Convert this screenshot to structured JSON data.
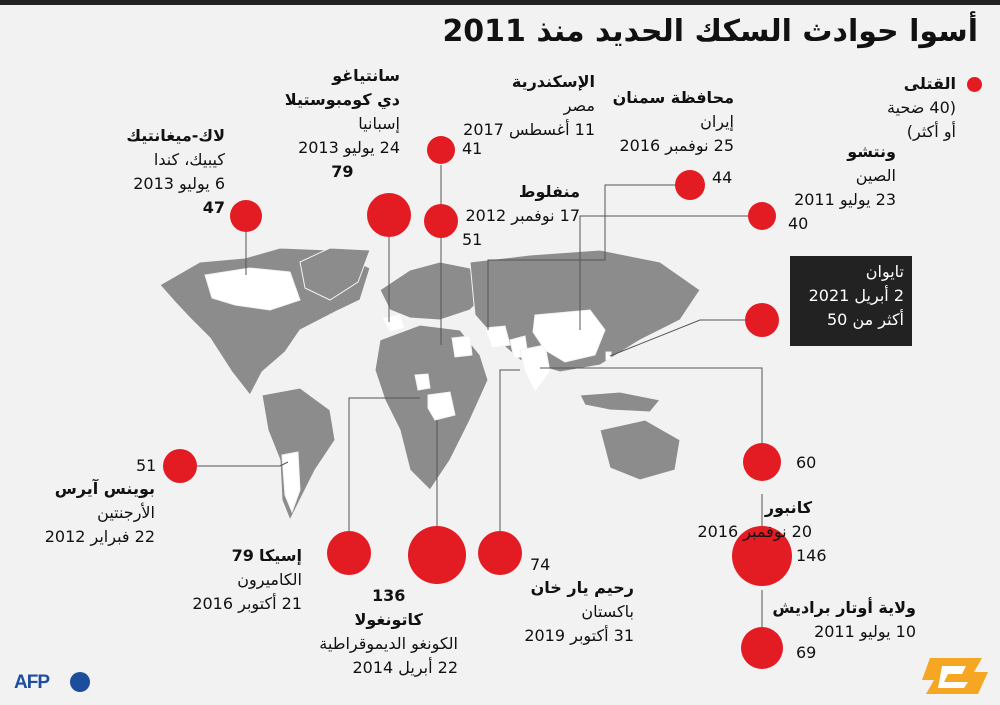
{
  "title": "أسوا حوادث السكك الحديد منذ 2011",
  "legend": {
    "heading": "القتلى",
    "line1": "(40 ضحية",
    "line2": "أو أكثر)"
  },
  "accent_color": "#e31b23",
  "events": [
    {
      "city": "لاك-ميغانتيك",
      "country": "كيبيك، كندا",
      "date": "6 يوليو 2013",
      "deaths": "47"
    },
    {
      "city": "سانتياغو",
      "city2": "دي كومبوستيلا",
      "country": "إسبانيا",
      "date": "24 يوليو 2013",
      "deaths": "79"
    },
    {
      "city": "الإسكندرية",
      "country": "مصر",
      "date": "11 أغسطس 2017",
      "deaths": "41"
    },
    {
      "city": "منفلوط",
      "date": "17 نوفمبر 2012",
      "deaths": "51"
    },
    {
      "city": "محافظة سمنان",
      "country": "إيران",
      "date": "25 نوفمبر 2016",
      "deaths": "44"
    },
    {
      "city": "ونتشو",
      "country": "الصين",
      "date": "23 يوليو 2011",
      "deaths": "40"
    },
    {
      "city": "تايوان",
      "date": "2 أبريل 2021",
      "deaths": "أكثر من 50"
    },
    {
      "deaths": "60"
    },
    {
      "city": "كانبور",
      "date": "20 نوفمبر 2016",
      "deaths": "146"
    },
    {
      "city": "ولاية أوتار براديش",
      "date": "10 يوليو 2011",
      "deaths": "69"
    },
    {
      "city": "رحيم يار خان",
      "country": "باكستان",
      "date": "31 أكتوبر 2019",
      "deaths": "74"
    },
    {
      "city": "كاتونغولا",
      "country": "الكونغو الديموقراطية",
      "date": "22 أبريل 2014",
      "deaths": "136"
    },
    {
      "city": "إسيكا",
      "country": "الكاميرون",
      "date": "21 أكتوبر 2016",
      "deaths": "79"
    },
    {
      "city": "بوينس آيرس",
      "country": "الأرجنتين",
      "date": "22 فبراير 2012",
      "deaths": "51"
    }
  ],
  "footer": {
    "agency": "AFP"
  }
}
